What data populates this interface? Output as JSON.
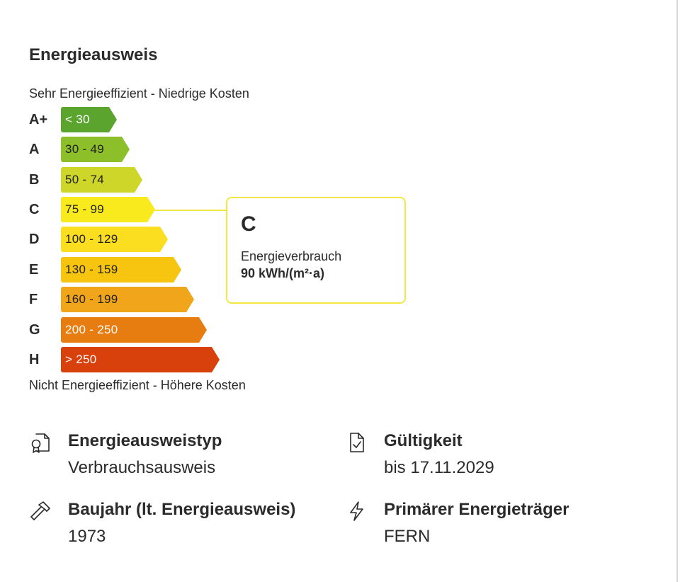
{
  "heading": "Energieausweis",
  "top_note": "Sehr Energieeffizient - Niedrige Kosten",
  "bottom_note": "Nicht Energieeffizient - Höhere Kosten",
  "scale": [
    {
      "class": "A+",
      "range": "< 30",
      "color": "#5ba52e",
      "text_color": "#ffffff"
    },
    {
      "class": "A",
      "range": "30 - 49",
      "color": "#8cbf2a",
      "text_color": "#1f1f1f"
    },
    {
      "class": "B",
      "range": "50 - 74",
      "color": "#cfd62a",
      "text_color": "#1f1f1f"
    },
    {
      "class": "C",
      "range": "75 - 99",
      "color": "#f8ea1c",
      "text_color": "#1f1f1f"
    },
    {
      "class": "D",
      "range": "100 - 129",
      "color": "#fbde1f",
      "text_color": "#1f1f1f"
    },
    {
      "class": "E",
      "range": "130 - 159",
      "color": "#f7c40f",
      "text_color": "#1f1f1f"
    },
    {
      "class": "F",
      "range": "160 - 199",
      "color": "#f0a51a",
      "text_color": "#1f1f1f"
    },
    {
      "class": "G",
      "range": "200 - 250",
      "color": "#e77c10",
      "text_color": "#ffffff"
    },
    {
      "class": "H",
      "range": "> 250",
      "color": "#d9410c",
      "text_color": "#ffffff"
    }
  ],
  "rating": {
    "class": "C",
    "label": "Energieverbrauch",
    "value": "90 kWh/(m²·a)",
    "accent": "#f5e742"
  },
  "details": {
    "type": {
      "icon": "certificate-icon",
      "label": "Energieausweistyp",
      "value": "Verbrauchsausweis"
    },
    "validity": {
      "icon": "document-check-icon",
      "label": "Gültigkeit",
      "value": "bis 17.11.2029"
    },
    "year": {
      "icon": "hammer-icon",
      "label": "Baujahr (lt. Energieausweis)",
      "value": "1973"
    },
    "source": {
      "icon": "lightning-icon",
      "label": "Primärer Energieträger",
      "value": "FERN"
    }
  }
}
